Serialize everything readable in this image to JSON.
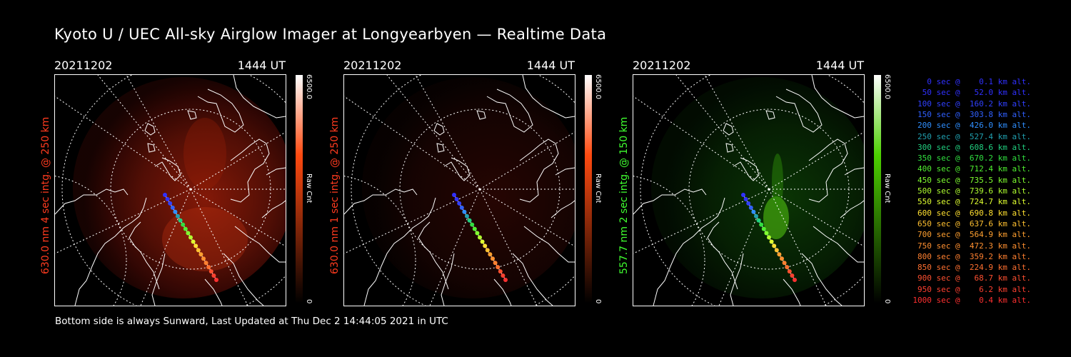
{
  "title": "Kyoto U / UEC All-sky Airglow Imager at Longyearbyen — Realtime Data",
  "footer": "Bottom side is always Sunward, Last Updated at Thu Dec  2 14:44:05 2021 in UTC",
  "panels": [
    {
      "date": "20211202",
      "time": "1444 UT",
      "label": "630.0 nm 4 sec intg. @ 250 km",
      "label_color": "#ff3b1f",
      "cbar_max": "6500.0",
      "cbar_min": "0",
      "cbar_unit": "Raw Cnt",
      "cbar_color": "#ff4a10",
      "glow": "red-strong"
    },
    {
      "date": "20211202",
      "time": "1444 UT",
      "label": "630.0 nm 1 sec intg. @ 250 km",
      "label_color": "#ff3b1f",
      "cbar_max": "6500.0",
      "cbar_min": "0",
      "cbar_unit": "Raw Cnt",
      "cbar_color": "#ff4a10",
      "glow": "red-faint"
    },
    {
      "date": "20211202",
      "time": "1444 UT",
      "label": "557.7 nm 2 sec intg. @ 150 km",
      "label_color": "#40ff30",
      "cbar_max": "6500.0",
      "cbar_min": "0",
      "cbar_unit": "Raw Cnt",
      "cbar_color": "#4cd000",
      "glow": "green"
    }
  ],
  "legend": [
    {
      "text": "   0 sec @    0.1 km alt.",
      "color": "#3030ff"
    },
    {
      "text": "  50 sec @   52.0 km alt.",
      "color": "#3030ff"
    },
    {
      "text": " 100 sec @  160.2 km alt.",
      "color": "#3040ff"
    },
    {
      "text": " 150 sec @  303.8 km alt.",
      "color": "#3060ff"
    },
    {
      "text": " 200 sec @  426.0 km alt.",
      "color": "#2f8fff"
    },
    {
      "text": " 250 sec @  527.4 km alt.",
      "color": "#20a0b0"
    },
    {
      "text": " 300 sec @  608.6 km alt.",
      "color": "#20d080"
    },
    {
      "text": " 350 sec @  670.2 km alt.",
      "color": "#30e040"
    },
    {
      "text": " 400 sec @  712.4 km alt.",
      "color": "#50f030"
    },
    {
      "text": " 450 sec @  735.5 km alt.",
      "color": "#80ff30"
    },
    {
      "text": " 500 sec @  739.6 km alt.",
      "color": "#b0ff30"
    },
    {
      "text": " 550 sec @  724.7 km alt.",
      "color": "#e0ff30"
    },
    {
      "text": " 600 sec @  690.8 km alt.",
      "color": "#ffe030"
    },
    {
      "text": " 650 sec @  637.6 km alt.",
      "color": "#ffc030"
    },
    {
      "text": " 700 sec @  564.9 km alt.",
      "color": "#ffa030"
    },
    {
      "text": " 750 sec @  472.3 km alt.",
      "color": "#ff9030"
    },
    {
      "text": " 800 sec @  359.2 km alt.",
      "color": "#ff8030"
    },
    {
      "text": " 850 sec @  224.9 km alt.",
      "color": "#ff7030"
    },
    {
      "text": " 900 sec @   68.7 km alt.",
      "color": "#ff5030"
    },
    {
      "text": " 950 sec @    6.2 km alt.",
      "color": "#ff4030"
    },
    {
      "text": "1000 sec @    0.4 km alt.",
      "color": "#ff3030"
    }
  ]
}
